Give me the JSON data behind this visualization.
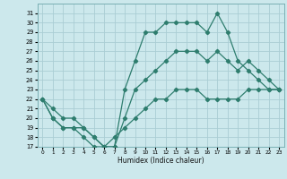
{
  "xlabel": "Humidex (Indice chaleur)",
  "bg_color": "#cce8ec",
  "grid_color": "#aacdd4",
  "line_color": "#2e7d6e",
  "x_hours": [
    0,
    1,
    2,
    3,
    4,
    5,
    6,
    7,
    8,
    9,
    10,
    11,
    12,
    13,
    14,
    15,
    16,
    17,
    18,
    19,
    20,
    21,
    22,
    23
  ],
  "series_max": [
    22,
    20,
    19,
    19,
    18,
    17,
    17,
    17,
    23,
    26,
    29,
    29,
    30,
    30,
    30,
    30,
    29,
    31,
    29,
    26,
    25,
    24,
    23,
    23
  ],
  "series_upper": [
    22,
    20,
    19,
    19,
    19,
    18,
    17,
    17,
    20,
    23,
    24,
    25,
    26,
    27,
    27,
    27,
    26,
    27,
    26,
    25,
    26,
    25,
    24,
    23
  ],
  "series_lower": [
    22,
    21,
    20,
    20,
    19,
    18,
    17,
    18,
    19,
    20,
    21,
    22,
    22,
    23,
    23,
    23,
    22,
    22,
    22,
    22,
    23,
    23,
    23,
    23
  ],
  "ylim": [
    17,
    32
  ],
  "xlim": [
    -0.5,
    23.5
  ],
  "yticks": [
    17,
    18,
    19,
    20,
    21,
    22,
    23,
    24,
    25,
    26,
    27,
    28,
    29,
    30,
    31
  ],
  "xticks": [
    0,
    1,
    2,
    3,
    4,
    5,
    6,
    7,
    8,
    9,
    10,
    11,
    12,
    13,
    14,
    15,
    16,
    17,
    18,
    19,
    20,
    21,
    22,
    23
  ]
}
